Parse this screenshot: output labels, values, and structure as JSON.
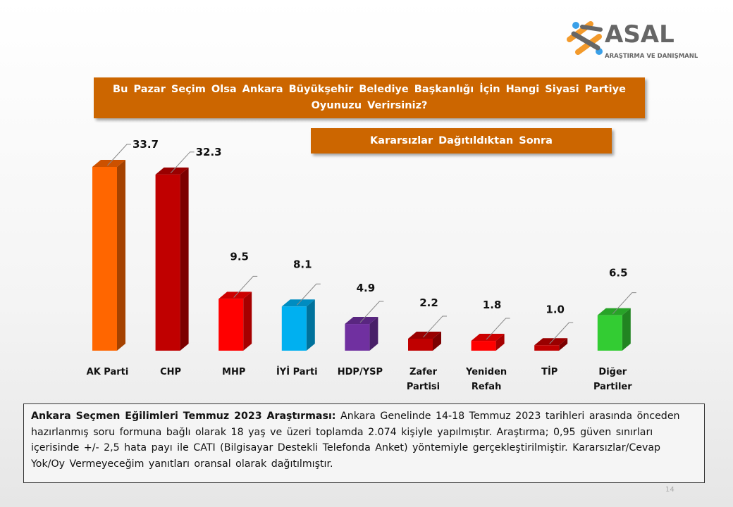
{
  "logo": {
    "brand": "ASAL",
    "tagline": "ARAŞTIRMA VE DANIŞMANLIK"
  },
  "question": "Bu Pazar Seçim Olsa Ankara Büyükşehir Belediye Başkanlığı İçin Hangi Siyasi Partiye Oyunuzu Verirsiniz?",
  "subtitle": "Kararsızlar Dağıtıldıktan Sonra",
  "chart_data": {
    "type": "bar",
    "categories": [
      [
        "AK Parti"
      ],
      [
        "CHP"
      ],
      [
        "MHP"
      ],
      [
        "İYİ Parti"
      ],
      [
        "HDP/YSP"
      ],
      [
        "Zafer",
        "Partisi"
      ],
      [
        "Yeniden",
        "Refah"
      ],
      [
        "TİP"
      ],
      [
        "Diğer",
        "Partiler"
      ]
    ],
    "values": [
      33.7,
      32.3,
      9.5,
      8.1,
      4.9,
      2.2,
      1.8,
      1.0,
      6.5
    ],
    "value_labels": [
      "33.7",
      "32.3",
      "9.5",
      "8.1",
      "4.9",
      "2.2",
      "1.8",
      "1.0",
      "6.5"
    ],
    "colors": [
      "#ff6600",
      "#c00000",
      "#ff0000",
      "#00b0f0",
      "#7030a0",
      "#c00000",
      "#ff0000",
      "#c00000",
      "#33cc33"
    ],
    "ylim": [
      0,
      35
    ],
    "grid": false,
    "legend": "none",
    "style": "3d"
  },
  "note": {
    "bold": "Ankara Seçmen Eğilimleri Temmuz 2023 Araştırması:",
    "text": " Ankara Genelinde 14-18 Temmuz 2023 tarihleri arasında önceden hazırlanmış soru formuna bağlı olarak 18 yaş ve üzeri toplamda 2.074 kişiyle yapılmıştır. Araştırma; 0,95 güven sınırları içerisinde +/- 2,5 hata payı ile CATI (Bilgisayar Destekli Telefonda Anket) yöntemiyle gerçekleştirilmiştir. Kararsızlar/Cevap Yok/Oy Vermeyeceğim yanıtları oransal olarak dağıtılmıştır."
  },
  "page_number": "14"
}
